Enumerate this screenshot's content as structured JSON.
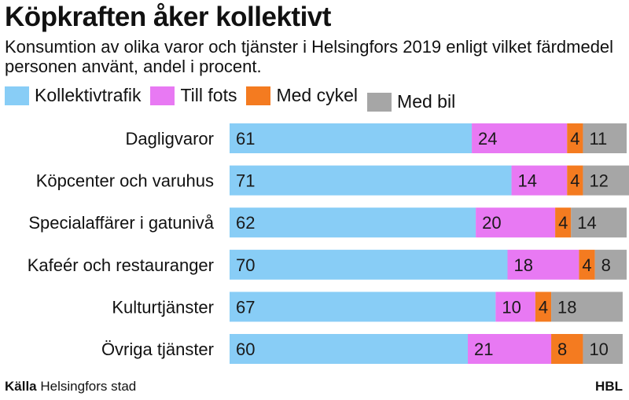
{
  "header": {
    "title": "Köpkraften åker kollektivt",
    "subtitle": "Konsumtion av olika varor och tjänster i Helsingfors 2019 enligt vilket färdmedel personen använt, andel i procent."
  },
  "colors": {
    "kollektivtrafik": "#88cdf6",
    "till_fots": "#e879f3",
    "med_cykel": "#f47b20",
    "med_bil": "#a6a6a6"
  },
  "chart_data": {
    "type": "bar",
    "orientation": "horizontal",
    "stacked": true,
    "title": "Köpkraften åker kollektivt",
    "subtitle": "Konsumtion av olika varor och tjänster i Helsingfors 2019 enligt vilket färdmedel personen använt, andel i procent.",
    "xlim": [
      0,
      100
    ],
    "grid": false,
    "legend": "top",
    "categories": [
      "Dagligvaror",
      "Köpcenter och varuhus",
      "Specialaffärer i gatunivå",
      "Kafeér och restauranger",
      "Kulturtjänster",
      "Övriga tjänster"
    ],
    "series": [
      {
        "name": "Kollektivtrafik",
        "color": "#88cdf6",
        "values": [
          61,
          71,
          62,
          70,
          67,
          60
        ]
      },
      {
        "name": "Till fots",
        "color": "#e879f3",
        "values": [
          24,
          14,
          20,
          18,
          10,
          21
        ]
      },
      {
        "name": "Med cykel",
        "color": "#f47b20",
        "values": [
          4,
          4,
          4,
          4,
          4,
          8
        ]
      },
      {
        "name": "Med bil",
        "color": "#a6a6a6",
        "values": [
          11,
          12,
          14,
          8,
          18,
          10
        ]
      }
    ]
  },
  "footer": {
    "source_label": "Källa",
    "source_text": "Helsingfors stad",
    "credit": "HBL"
  }
}
